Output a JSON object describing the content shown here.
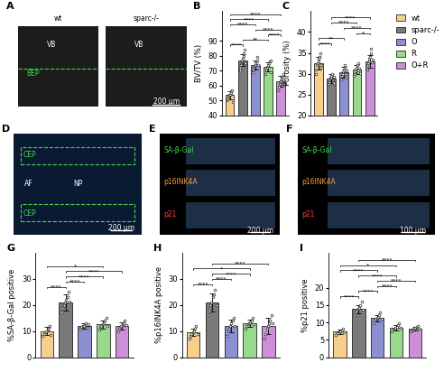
{
  "chart_data": [
    {
      "panel": "B",
      "type": "bar",
      "y_label": "BV/TV (%)",
      "categories": [
        "wt",
        "sparc-/-",
        "O",
        "R",
        "O+R"
      ],
      "colors": [
        "#F7CF8B",
        "#7A7A7A",
        "#8C8FD1",
        "#99D98C",
        "#CC8FD8"
      ],
      "values": [
        53.5,
        77,
        74,
        72.5,
        63
      ],
      "errors": [
        2.5,
        4,
        3,
        3,
        3.5
      ],
      "points": [
        [
          50,
          51,
          52,
          53,
          53.5,
          54,
          55,
          56,
          57,
          49
        ],
        [
          70,
          72,
          74,
          76,
          77,
          78,
          80,
          82,
          84,
          75
        ],
        [
          69,
          71,
          72,
          73,
          74,
          75,
          76,
          77,
          79,
          74
        ],
        [
          68,
          70,
          71,
          72,
          73,
          74,
          75,
          76,
          69,
          77
        ],
        [
          57,
          59,
          61,
          62,
          63,
          64,
          65,
          66,
          68,
          62
        ]
      ],
      "ylim": [
        40,
        110
      ],
      "yticks": [
        40,
        50,
        60,
        70,
        80,
        90
      ],
      "tick_labels": "y",
      "comparisons": [
        {
          "pair": [
            "wt",
            "sparc-/-"
          ],
          "label": "****"
        },
        {
          "pair": [
            "sparc-/-",
            "R"
          ],
          "label": "**"
        },
        {
          "pair": [
            "R",
            "O+R"
          ],
          "label": "****"
        },
        {
          "pair": [
            "O",
            "O+R"
          ],
          "label": "****"
        },
        {
          "pair": [
            "wt",
            "O"
          ],
          "label": "****"
        },
        {
          "pair": [
            "wt",
            "R"
          ],
          "label": "****"
        },
        {
          "pair": [
            "wt",
            "O+R"
          ],
          "label": "****"
        }
      ]
    },
    {
      "panel": "C",
      "type": "bar",
      "y_label": "Porosity (%)",
      "categories": [
        "wt",
        "sparc-/-",
        "O",
        "R",
        "O+R"
      ],
      "colors": [
        "#F7CF8B",
        "#7A7A7A",
        "#8C8FD1",
        "#99D98C",
        "#CC8FD8"
      ],
      "values": [
        32.5,
        28.8,
        30.3,
        31,
        33
      ],
      "errors": [
        1.5,
        1,
        1.3,
        1,
        1.5
      ],
      "points": [
        [
          30,
          31,
          32,
          32.5,
          33,
          33.5,
          34,
          35,
          31.5,
          32
        ],
        [
          27.5,
          28,
          28.5,
          29,
          29,
          29.5,
          30,
          28,
          27.8,
          29.2
        ],
        [
          28.5,
          29.5,
          30,
          30.5,
          31,
          31.5,
          32,
          29,
          30,
          30.8
        ],
        [
          29.5,
          30,
          30.5,
          31,
          31.5,
          32,
          32.5,
          30.8,
          31.2,
          30.2
        ],
        [
          31,
          32,
          32.5,
          33,
          33.5,
          34,
          35,
          36,
          32.8,
          33.3
        ]
      ],
      "ylim": [
        20,
        45
      ],
      "yticks": [
        20,
        25,
        30,
        35,
        40
      ],
      "tick_labels": "y",
      "legend": "upper right",
      "comparisons": [
        {
          "pair": [
            "wt",
            "sparc-/-"
          ],
          "label": "****"
        },
        {
          "pair": [
            "wt",
            "O"
          ],
          "label": "**"
        },
        {
          "pair": [
            "R",
            "O+R"
          ],
          "label": "*"
        },
        {
          "pair": [
            "O",
            "O+R"
          ],
          "label": "****"
        },
        {
          "pair": [
            "sparc-/-",
            "R"
          ],
          "label": "****"
        },
        {
          "pair": [
            "sparc-/-",
            "O+R"
          ],
          "label": "****"
        }
      ]
    },
    {
      "panel": "G",
      "type": "bar",
      "y_label": "%SA-β-Gal positive",
      "categories": [
        "wt",
        "sparc-/-",
        "O",
        "R",
        "O+R"
      ],
      "colors": [
        "#F7CF8B",
        "#7A7A7A",
        "#8C8FD1",
        "#99D98C",
        "#CC8FD8"
      ],
      "values": [
        10,
        21,
        12,
        12.5,
        12
      ],
      "errors": [
        1.5,
        3,
        1,
        1.5,
        1.5
      ],
      "points": [
        [
          8,
          9,
          9.5,
          10,
          10.5,
          11,
          12,
          8.5
        ],
        [
          17,
          19,
          20,
          21,
          22,
          23,
          25,
          21.5
        ],
        [
          11,
          11.5,
          12,
          12,
          12.5,
          13,
          11.2,
          12.8
        ],
        [
          10.5,
          11.5,
          12,
          12.5,
          13,
          14,
          15,
          11.8
        ],
        [
          10,
          11,
          11.5,
          12,
          12.5,
          13,
          14,
          12.2
        ]
      ],
      "ylim": [
        0,
        40
      ],
      "yticks": [
        0,
        10,
        20,
        30
      ],
      "tick_labels": "y",
      "comparisons": [
        {
          "pair": [
            "wt",
            "sparc-/-"
          ],
          "label": "****"
        },
        {
          "pair": [
            "sparc-/-",
            "O"
          ],
          "label": "****"
        },
        {
          "pair": [
            "sparc-/-",
            "R"
          ],
          "label": "****"
        },
        {
          "pair": [
            "sparc-/-",
            "O+R"
          ],
          "label": "****"
        },
        {
          "pair": [
            "wt",
            "R"
          ],
          "label": "*"
        }
      ]
    },
    {
      "panel": "H",
      "type": "bar",
      "y_label": "%p16INK4A positive",
      "categories": [
        "wt",
        "sparc-/-",
        "O",
        "R",
        "O+R"
      ],
      "colors": [
        "#F7CF8B",
        "#7A7A7A",
        "#8C8FD1",
        "#99D98C",
        "#CC8FD8"
      ],
      "values": [
        9.5,
        21,
        12,
        13,
        12
      ],
      "errors": [
        1.5,
        3.5,
        2.5,
        1.5,
        3
      ],
      "points": [
        [
          7,
          8,
          9,
          9.5,
          10,
          11,
          12,
          9
        ],
        [
          16,
          18,
          20,
          21,
          23,
          24,
          26,
          20
        ],
        [
          8,
          10,
          11,
          12,
          13,
          14,
          15,
          12
        ],
        [
          11,
          12,
          12.5,
          13,
          13.5,
          14,
          15,
          12.8
        ],
        [
          7,
          9,
          11,
          12,
          13,
          14,
          16,
          13
        ]
      ],
      "ylim": [
        0,
        40
      ],
      "yticks": [
        0,
        10,
        20,
        30
      ],
      "tick_labels": "y",
      "comparisons": [
        {
          "pair": [
            "wt",
            "sparc-/-"
          ],
          "label": "****"
        },
        {
          "pair": [
            "sparc-/-",
            "O"
          ],
          "label": "****"
        },
        {
          "pair": [
            "sparc-/-",
            "R"
          ],
          "label": "****"
        },
        {
          "pair": [
            "wt",
            "R"
          ],
          "label": "*"
        },
        {
          "pair": [
            "sparc-/-",
            "O+R"
          ],
          "label": "****"
        }
      ]
    },
    {
      "panel": "I",
      "type": "bar",
      "y_label": "%p21 positive",
      "categories": [
        "wt",
        "sparc-/-",
        "O",
        "R",
        "O+R"
      ],
      "colors": [
        "#F7CF8B",
        "#7A7A7A",
        "#8C8FD1",
        "#99D98C",
        "#CC8FD8"
      ],
      "values": [
        7.3,
        13.8,
        11.2,
        8.5,
        8.2
      ],
      "errors": [
        0.6,
        1.2,
        1,
        0.8,
        0.6
      ],
      "points": [
        [
          6.5,
          6.8,
          7,
          7.3,
          7.5,
          7.8,
          8.2,
          7.2
        ],
        [
          12,
          12.8,
          13.5,
          14,
          14.3,
          15,
          16,
          13.6
        ],
        [
          9.8,
          10.5,
          11,
          11.2,
          11.5,
          12,
          12.8,
          11
        ],
        [
          7.5,
          8,
          8.3,
          8.5,
          8.8,
          9.2,
          9.8,
          8.4
        ],
        [
          7.5,
          7.8,
          8,
          8.2,
          8.4,
          8.7,
          9,
          8.1
        ]
      ],
      "ylim": [
        0,
        30
      ],
      "yticks": [
        0,
        5,
        10,
        15,
        20
      ],
      "tick_labels": "y",
      "comparisons": [
        {
          "pair": [
            "wt",
            "sparc-/-"
          ],
          "label": "****"
        },
        {
          "pair": [
            "sparc-/-",
            "O"
          ],
          "label": "****"
        },
        {
          "pair": [
            "O",
            "R"
          ],
          "label": "****"
        },
        {
          "pair": [
            "O",
            "O+R"
          ],
          "label": "****"
        },
        {
          "pair": [
            "sparc-/-",
            "R"
          ],
          "label": "****"
        },
        {
          "pair": [
            "wt",
            "O"
          ],
          "label": "****"
        },
        {
          "pair": [
            "wt",
            "R"
          ],
          "label": "*"
        },
        {
          "pair": [
            "sparc-/-",
            "O+R"
          ],
          "label": "****"
        }
      ]
    }
  ],
  "images": [
    {
      "panel": "A",
      "labels": [
        "wt",
        "sparc-/-",
        "VB",
        "VB",
        "BEP",
        "200 μm"
      ]
    },
    {
      "panel": "D",
      "labels": [
        "CEP",
        "AF",
        "NP",
        "CEP",
        "200 μm"
      ]
    },
    {
      "panel": "E",
      "labels": [
        "SA-β-Gal",
        "p16INK4A",
        "p21",
        "200 μm"
      ]
    },
    {
      "panel": "F",
      "labels": [
        "SA-β-Gal",
        "p16INK4A",
        "p21",
        "100 μm"
      ]
    }
  ]
}
